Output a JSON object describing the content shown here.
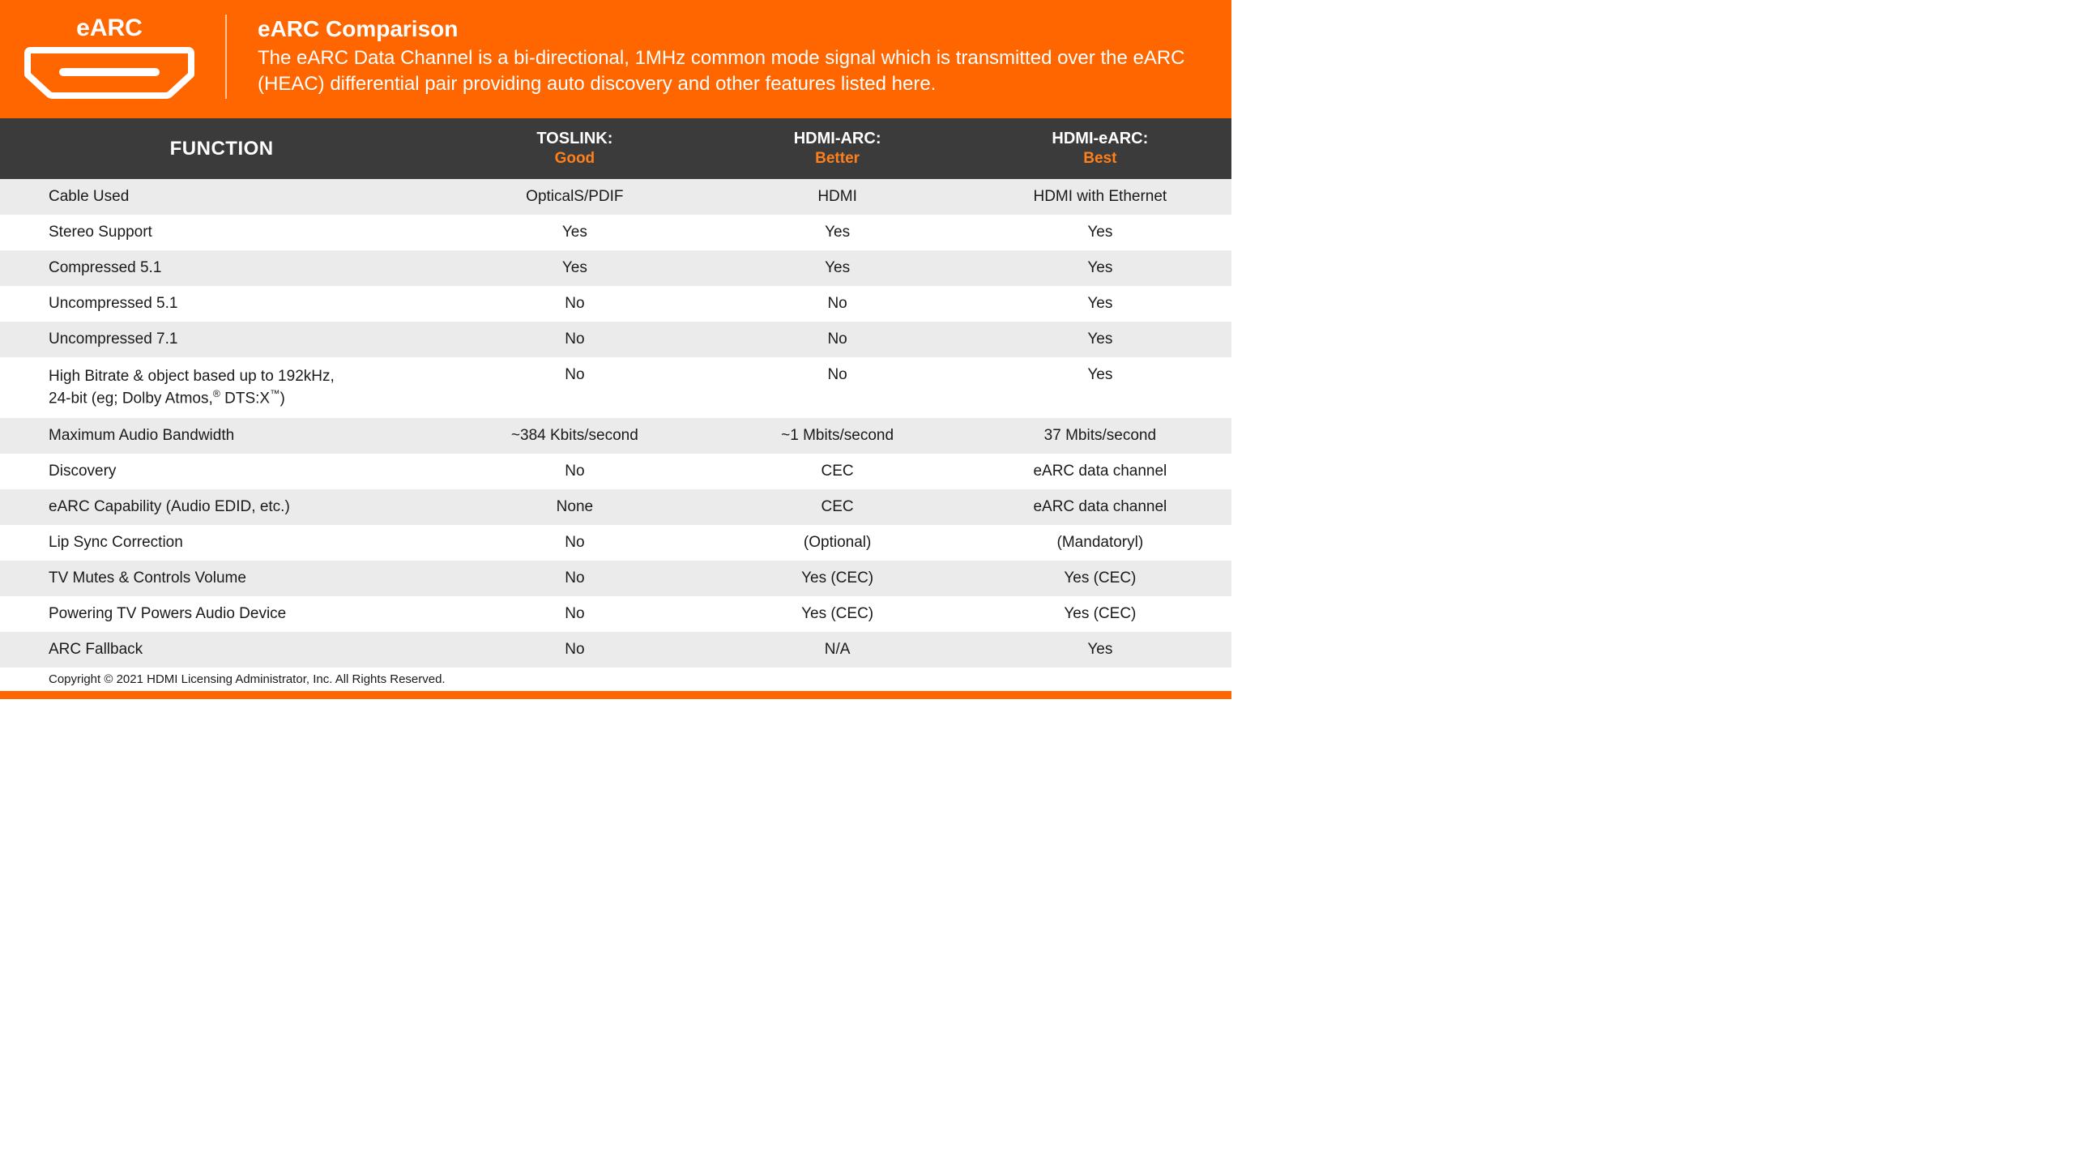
{
  "colors": {
    "accent": "#ff6600",
    "header_bg": "#3b3b3b",
    "row_odd": "#ebebeb",
    "row_even": "#ffffff",
    "text": "#1a1a1a",
    "rating": "#ff7f1a"
  },
  "typography": {
    "header_title_fontsize": 28,
    "header_desc_fontsize": 24,
    "th_fontsize": 20,
    "th_function_fontsize": 24,
    "td_fontsize": 19,
    "copyright_fontsize": 15
  },
  "header": {
    "logo_label": "eARC",
    "title": "eARC Comparison",
    "description": "The eARC Data Channel is a bi-directional, 1MHz common mode signal which is transmitted over the eARC (HEAC) differential pair providing auto discovery and other features listed here."
  },
  "table": {
    "type": "table",
    "columns": [
      {
        "label": "FUNCTION",
        "rating": ""
      },
      {
        "label": "TOSLINK:",
        "rating": "Good"
      },
      {
        "label": "HDMI-ARC:",
        "rating": "Better"
      },
      {
        "label": "HDMI-eARC:",
        "rating": "Best"
      }
    ],
    "rows": [
      {
        "fn": "Cable Used",
        "c1": "OpticalS/PDIF",
        "c2": "HDMI",
        "c3": "HDMI with Ethernet"
      },
      {
        "fn": "Stereo Support",
        "c1": "Yes",
        "c2": "Yes",
        "c3": "Yes"
      },
      {
        "fn": "Compressed 5.1",
        "c1": "Yes",
        "c2": "Yes",
        "c3": "Yes"
      },
      {
        "fn": "Uncompressed 5.1",
        "c1": "No",
        "c2": "No",
        "c3": "Yes"
      },
      {
        "fn": "Uncompressed 7.1",
        "c1": "No",
        "c2": "No",
        "c3": "Yes"
      },
      {
        "fn_html": "High Bitrate & object based up to 192kHz,<br>24-bit (eg; Dolby Atmos,<sup>®</sup> DTS:X<sup>™</sup>)",
        "c1": "No",
        "c2": "No",
        "c3": "Yes"
      },
      {
        "fn": "Maximum Audio Bandwidth",
        "c1": "~384 Kbits/second",
        "c2": "~1 Mbits/second",
        "c3": "37 Mbits/second"
      },
      {
        "fn": "Discovery",
        "c1": "No",
        "c2": "CEC",
        "c3": "eARC data channel"
      },
      {
        "fn": "eARC Capability (Audio EDID, etc.)",
        "c1": "None",
        "c2": "CEC",
        "c3": "eARC data channel"
      },
      {
        "fn": "Lip Sync Correction",
        "c1": "No",
        "c2": "(Optional)",
        "c3": "(Mandatoryl)"
      },
      {
        "fn": "TV Mutes & Controls Volume",
        "c1": "No",
        "c2": "Yes (CEC)",
        "c3": "Yes (CEC)"
      },
      {
        "fn": "Powering TV Powers Audio Device",
        "c1": "No",
        "c2": "Yes (CEC)",
        "c3": "Yes (CEC)"
      },
      {
        "fn": "ARC Fallback",
        "c1": "No",
        "c2": "N/A",
        "c3": "Yes"
      }
    ]
  },
  "copyright": "Copyright © 2021 HDMI Licensing Administrator, Inc. All Rights Reserved."
}
